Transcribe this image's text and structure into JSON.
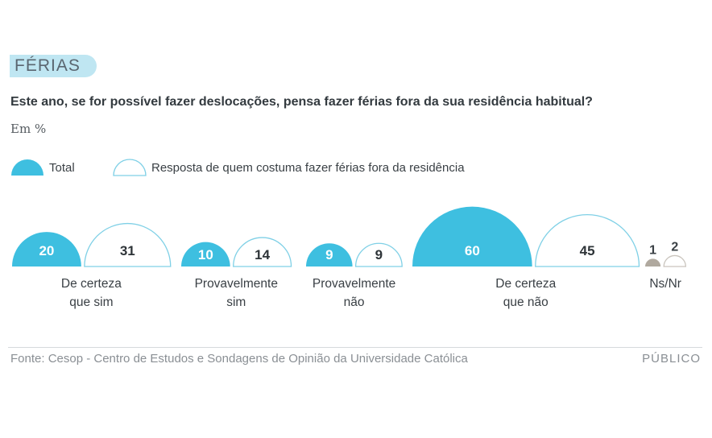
{
  "tag": "FÉRIAS",
  "question": "Este ano, se for possível fazer deslocações, pensa fazer férias fora da sua residência habitual?",
  "unit": "Em %",
  "source": "Fonte: Cesop - Centro de Estudos e Sondagens de Opinião da Universidade Católica",
  "brand": "PÚBLICO",
  "colors": {
    "total": "#3ebfe0",
    "outline": "#7fd0e6",
    "nsnr": "#b0a99f",
    "nsnr_outline": "#c9c4bd"
  },
  "chart_data": {
    "type": "bar",
    "categories": [
      "De certeza que sim",
      "Provavelmente sim",
      "Provavelmente não",
      "De certeza que não",
      "Ns/Nr"
    ],
    "category_lines": [
      [
        "De certeza",
        "que sim"
      ],
      [
        "Provavelmente",
        "sim"
      ],
      [
        "Provavelmente",
        "não"
      ],
      [
        "De certeza",
        "que não"
      ],
      [
        "Ns/Nr"
      ]
    ],
    "series": [
      {
        "name": "Total",
        "values": [
          20,
          10,
          9,
          60,
          1
        ]
      },
      {
        "name": "Resposta de quem costuma fazer férias fora da residência",
        "values": [
          31,
          14,
          9,
          45,
          2
        ]
      }
    ],
    "value_labels": [
      [
        "20",
        "31"
      ],
      [
        "10",
        "14"
      ],
      [
        "9",
        "9"
      ],
      [
        "60",
        "45"
      ],
      [
        "1",
        "2"
      ]
    ],
    "ylabel": "Em %"
  }
}
